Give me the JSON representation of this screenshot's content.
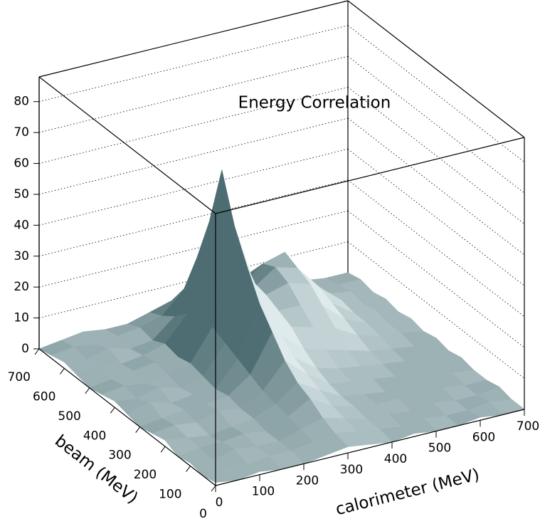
{
  "chart_data": {
    "type": "surface3d",
    "title": "Energy Correlation",
    "xlabel": "calorimeter (MeV)",
    "ylabel": "beam (MeV)",
    "x": [
      0,
      50,
      100,
      150,
      200,
      250,
      300,
      350,
      400,
      450,
      500,
      550,
      600,
      650,
      700
    ],
    "y": [
      0,
      50,
      100,
      150,
      200,
      250,
      300,
      350,
      400,
      450,
      500,
      550,
      600,
      650,
      700
    ],
    "z": [
      [
        1,
        0,
        1,
        0,
        0,
        1,
        2,
        1,
        0,
        1,
        0,
        0,
        1,
        0,
        0
      ],
      [
        0,
        1,
        0,
        1,
        1,
        2,
        3,
        2,
        1,
        0,
        1,
        0,
        0,
        1,
        0
      ],
      [
        1,
        0,
        2,
        1,
        1,
        3,
        5,
        3,
        1,
        1,
        0,
        1,
        0,
        0,
        1
      ],
      [
        0,
        1,
        1,
        2,
        1,
        4,
        8,
        4,
        2,
        1,
        1,
        0,
        1,
        0,
        0
      ],
      [
        2,
        1,
        0,
        1,
        2,
        5,
        10,
        6,
        2,
        1,
        0,
        1,
        0,
        1,
        0
      ],
      [
        1,
        2,
        1,
        3,
        2,
        6,
        14,
        8,
        3,
        2,
        1,
        0,
        1,
        0,
        1
      ],
      [
        0,
        1,
        2,
        2,
        3,
        8,
        20,
        10,
        5,
        3,
        2,
        1,
        0,
        1,
        0
      ],
      [
        1,
        3,
        1,
        2,
        2,
        10,
        26,
        14,
        8,
        6,
        4,
        2,
        1,
        0,
        1
      ],
      [
        2,
        1,
        3,
        1,
        3,
        12,
        35,
        18,
        12,
        10,
        8,
        4,
        2,
        1,
        0
      ],
      [
        1,
        2,
        1,
        2,
        4,
        14,
        45,
        22,
        14,
        14,
        12,
        6,
        3,
        1,
        1
      ],
      [
        0,
        1,
        2,
        3,
        3,
        16,
        60,
        25,
        16,
        18,
        16,
        8,
        3,
        2,
        0
      ],
      [
        1,
        2,
        1,
        2,
        4,
        12,
        40,
        20,
        15,
        20,
        18,
        10,
        4,
        1,
        1
      ],
      [
        2,
        1,
        3,
        1,
        2,
        8,
        25,
        15,
        12,
        18,
        20,
        9,
        3,
        2,
        0
      ],
      [
        1,
        2,
        1,
        2,
        3,
        5,
        12,
        10,
        8,
        12,
        14,
        6,
        2,
        1,
        1
      ],
      [
        0,
        1,
        2,
        1,
        1,
        3,
        5,
        4,
        3,
        5,
        6,
        3,
        1,
        0,
        0
      ]
    ],
    "color": "#8fadb2",
    "xlim": [
      0,
      700
    ],
    "ylim": [
      0,
      700
    ],
    "zlim": [
      0,
      88
    ],
    "xticks": [
      0,
      100,
      200,
      300,
      400,
      500,
      600,
      700
    ],
    "yticks": [
      0,
      100,
      200,
      300,
      400,
      500,
      600,
      700
    ],
    "zticks": [
      0,
      10,
      20,
      30,
      40,
      50,
      60,
      70,
      80
    ],
    "grid": true
  }
}
